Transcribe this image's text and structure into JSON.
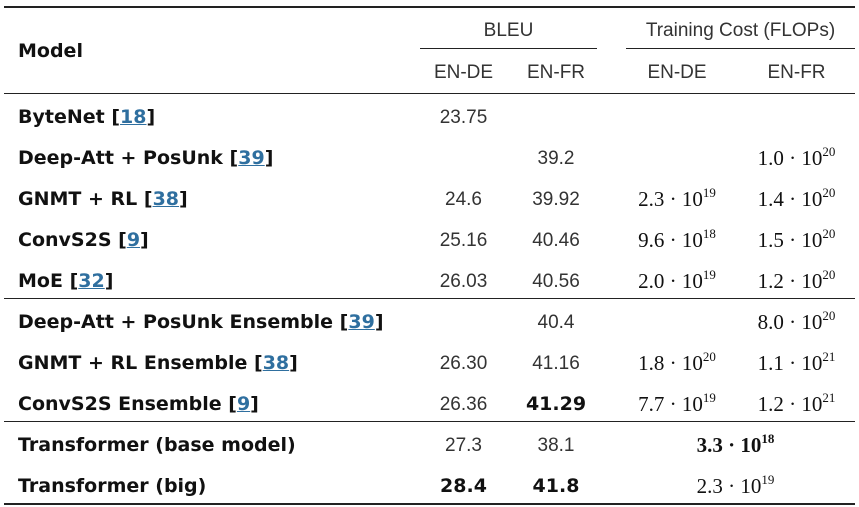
{
  "header": {
    "model": "Model",
    "bleu": "BLEU",
    "cost": "Training Cost (FLOPs)",
    "bleu_ende": "EN-DE",
    "bleu_enfr": "EN-FR",
    "cost_ende": "EN-DE",
    "cost_enfr": "EN-FR"
  },
  "rows": [
    {
      "name": "ByteNet",
      "ref": "18",
      "bleu_ende": "23.75",
      "bleu_enfr": "",
      "cost_ende": "",
      "cost_enfr": ""
    },
    {
      "name": "Deep-Att + PosUnk",
      "ref": "39",
      "bleu_ende": "",
      "bleu_enfr": "39.2",
      "cost_ende": "",
      "cost_enfr": "1.0 · 10^20"
    },
    {
      "name": "GNMT + RL",
      "ref": "38",
      "bleu_ende": "24.6",
      "bleu_enfr": "39.92",
      "cost_ende": "2.3 · 10^19",
      "cost_enfr": "1.4 · 10^20"
    },
    {
      "name": "ConvS2S",
      "ref": "9",
      "bleu_ende": "25.16",
      "bleu_enfr": "40.46",
      "cost_ende": "9.6 · 10^18",
      "cost_enfr": "1.5 · 10^20"
    },
    {
      "name": "MoE",
      "ref": "32",
      "bleu_ende": "26.03",
      "bleu_enfr": "40.56",
      "cost_ende": "2.0 · 10^19",
      "cost_enfr": "1.2 · 10^20"
    },
    {
      "name": "Deep-Att + PosUnk Ensemble",
      "ref": "39",
      "bleu_ende": "",
      "bleu_enfr": "40.4",
      "cost_ende": "",
      "cost_enfr": "8.0 · 10^20"
    },
    {
      "name": "GNMT + RL Ensemble",
      "ref": "38",
      "bleu_ende": "26.30",
      "bleu_enfr": "41.16",
      "cost_ende": "1.8 · 10^20",
      "cost_enfr": "1.1 · 10^21"
    },
    {
      "name": "ConvS2S Ensemble",
      "ref": "9",
      "bleu_ende": "26.36",
      "bleu_enfr": "41.29",
      "bleu_enfr_bold": true,
      "cost_ende": "7.7 · 10^19",
      "cost_enfr": "1.2 · 10^21"
    },
    {
      "name": "Transformer (base model)",
      "ref": "",
      "bleu_ende": "27.3",
      "bleu_enfr": "38.1",
      "cost_shared": "3.3 · 10^18",
      "cost_shared_bold": true
    },
    {
      "name": "Transformer (big)",
      "ref": "",
      "bleu_ende": "28.4",
      "bleu_ende_bold": true,
      "bleu_enfr": "41.8",
      "bleu_enfr_bold": true,
      "cost_shared": "2.3 · 10^19"
    }
  ]
}
